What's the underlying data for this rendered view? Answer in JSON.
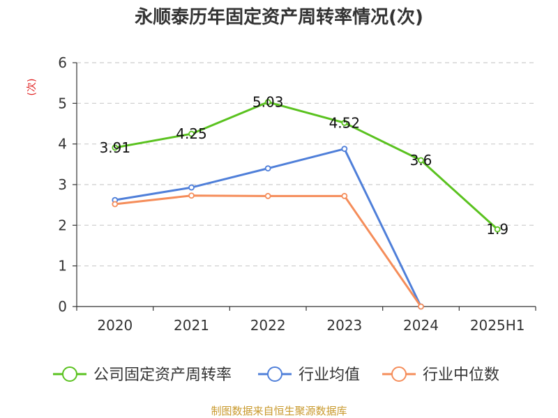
{
  "chart_data": {
    "type": "line",
    "title": "永顺泰历年固定资产周转率情况(次)",
    "ylabel": "(次)",
    "xlabel": "",
    "categories": [
      "2020",
      "2021",
      "2022",
      "2023",
      "2024",
      "2025H1"
    ],
    "ylim": [
      0,
      6
    ],
    "yticks": [
      0,
      1,
      2,
      3,
      4,
      5,
      6
    ],
    "grid": true,
    "legend_position": "bottom",
    "series": [
      {
        "name": "公司固定资产周转率",
        "values": [
          3.91,
          4.25,
          5.03,
          4.52,
          3.6,
          1.9
        ],
        "color": "#5ac21f",
        "show_labels": true,
        "labels": [
          "3.91",
          "4.25",
          "5.03",
          "4.52",
          "3.6",
          "1.9"
        ]
      },
      {
        "name": "行业均值",
        "values": [
          2.62,
          2.93,
          3.4,
          3.88,
          0.0,
          null
        ],
        "color": "#4f7fd9",
        "show_labels": false
      },
      {
        "name": "行业中位数",
        "values": [
          2.52,
          2.73,
          2.72,
          2.72,
          0.0,
          null
        ],
        "color": "#f58d5a",
        "show_labels": false
      }
    ]
  },
  "colors": {
    "ylabel": "#e02020",
    "source": "#c99a2e",
    "grid": "#cccccc",
    "axis": "#333333"
  },
  "source_text": "制图数据来自恒生聚源数据库"
}
